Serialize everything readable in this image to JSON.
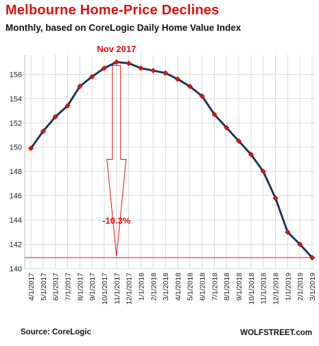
{
  "title": "Melbourne  Home-Price Declines",
  "subtitle": "Monthly, based on CoreLogic Daily Home Value Index",
  "source": "Source: CoreLogic",
  "brand": "WOLFSTREET.com",
  "annotations": {
    "peak_label": "Nov 2017",
    "decline_label": "-10.3%"
  },
  "colors": {
    "title": "#e01010",
    "line": "#1f3557",
    "marker": "#e01010",
    "annotation": "#e01010",
    "grid": "#d9d9d9"
  },
  "chart_data": {
    "type": "line",
    "title": "Melbourne  Home-Price Declines",
    "subtitle": "Monthly, based on CoreLogic Daily Home Value Index",
    "xlabel": "",
    "ylabel": "",
    "categories": [
      "4/1/2017",
      "5/1/2017",
      "6/1/2017",
      "7/1/2017",
      "8/1/2017",
      "9/1/2017",
      "10/1/2017",
      "11/1/2017",
      "12/1/2017",
      "1/1/2018",
      "2/1/2018",
      "3/1/2018",
      "4/1/2018",
      "5/1/2018",
      "6/1/2018",
      "7/1/2018",
      "8/1/2018",
      "9/1/2018",
      "10/1/2018",
      "11/1/2018",
      "12/1/2018",
      "1/1/2019",
      "2/1/2019",
      "3/1/2019"
    ],
    "series": [
      {
        "values": [
          149.9,
          151.3,
          152.5,
          153.4,
          155.0,
          155.8,
          156.5,
          157.0,
          156.9,
          156.5,
          156.3,
          156.1,
          155.6,
          155.0,
          154.2,
          152.7,
          151.6,
          150.5,
          149.4,
          148.0,
          145.8,
          143.0,
          142.0,
          140.9
        ]
      }
    ],
    "yticks": [
      140,
      142,
      144,
      146,
      148,
      150,
      152,
      154,
      156
    ],
    "ylim": [
      140,
      157.6
    ],
    "grid": true,
    "reference_line": 140.9
  }
}
